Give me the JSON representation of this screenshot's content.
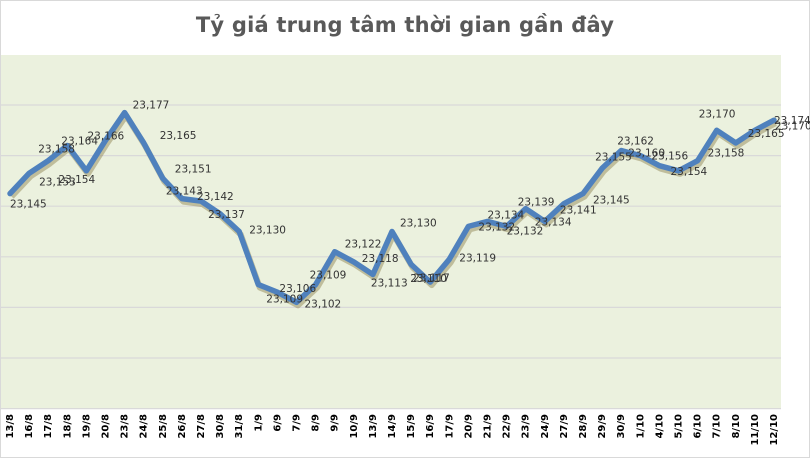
{
  "chart_data": {
    "type": "line",
    "title": "Tỷ giá trung tâm thời gian gần đây",
    "xlabel": "",
    "ylabel": "",
    "categories": [
      "13/8",
      "16/8",
      "17/8",
      "18/8",
      "19/8",
      "20/8",
      "23/8",
      "24/8",
      "25/8",
      "26/8",
      "27/8",
      "30/8",
      "31/8",
      "1/9",
      "6/9",
      "7/9",
      "8/9",
      "9/9",
      "10/9",
      "13/9",
      "14/9",
      "15/9",
      "16/9",
      "17/9",
      "20/9",
      "21/9",
      "22/9",
      "23/9",
      "24/9",
      "27/9",
      "28/9",
      "29/9",
      "30/9",
      "1/10",
      "4/10",
      "5/10",
      "6/10",
      "7/10",
      "8/10",
      "11/10",
      "12/10"
    ],
    "series": [
      {
        "name": "Tỷ giá trung tâm",
        "values": [
          23145,
          23153,
          23158,
          23164,
          23154,
          23166,
          23177,
          23165,
          23151,
          23143,
          23142,
          23137,
          23130,
          23109,
          23106,
          23102,
          23109,
          23122,
          23118,
          23113,
          23130,
          23117,
          23110,
          23119,
          23132,
          23134,
          23132,
          23139,
          23134,
          23141,
          23145,
          23155,
          23162,
          23160,
          23156,
          23154,
          23158,
          23170,
          23165,
          23170,
          23174
        ],
        "labels": [
          "23,145",
          "23,153",
          "23,158",
          "23,164",
          "23,154",
          "23,166",
          "23,177",
          "23,165",
          "23,151",
          "23,143",
          "23,142",
          "23,137",
          "23,130",
          "23,109",
          "23,106",
          "23,102",
          "23,109",
          "23,122",
          "23,118",
          "23,113",
          "23,130",
          "23,117",
          "23,110",
          "23,119",
          "23,132",
          "23,134",
          "23,132",
          "23,139",
          "23,134",
          "23,141",
          "23,145",
          "23,155",
          "23,162",
          "23,160",
          "23,156",
          "23,154",
          "23,158",
          "23,170",
          "23,165",
          "23,170",
          "23,174"
        ]
      }
    ],
    "ylim": [
      23060,
      23200
    ],
    "grid": true,
    "gridlines_step": 20,
    "y_axis_labels_visible": false,
    "legend": "none",
    "colors": {
      "line": "#4f81bd",
      "plot_background": "#ebf1de",
      "gridline": "#d9d9d9",
      "title": "#595959"
    }
  }
}
